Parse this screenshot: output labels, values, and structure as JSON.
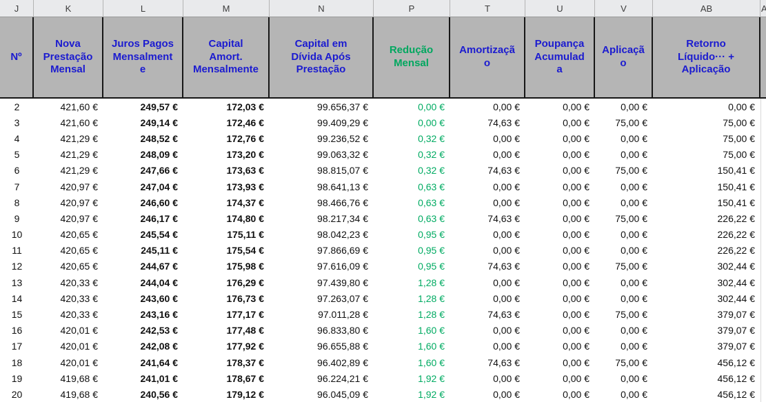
{
  "colors": {
    "header_bg": "#b5b5b5",
    "letters_bg": "#e9eaec",
    "header_blue": "#1b1bd0",
    "green": "#00a75f",
    "value_green": "#00ab62"
  },
  "column_letters": [
    "J",
    "K",
    "L",
    "M",
    "N",
    "P",
    "T",
    "U",
    "V",
    "AB",
    "A"
  ],
  "headers": {
    "n": "Nº",
    "k": "Nova\nPrestação\nMensal",
    "l": "Juros Pagos\nMensalment\ne",
    "m": "Capital\nAmort.\nMensalmente",
    "nd": "Capital em\nDívida Após\nPrestação",
    "p": "Redução\nMensal",
    "t": "Amortizaçã\no",
    "u": "Poupança\nAcumulad\na",
    "v": "Aplicaçã\no",
    "ab": "Retorno\nLíquido··· +\nAplicação"
  },
  "rows": [
    {
      "n": "2",
      "k": "421,60 €",
      "l": "249,57 €",
      "m": "172,03 €",
      "nd": "99.656,37 €",
      "p": "0,00 €",
      "t": "0,00 €",
      "u": "0,00 €",
      "v": "0,00 €",
      "ab": "0,00 €"
    },
    {
      "n": "3",
      "k": "421,60 €",
      "l": "249,14 €",
      "m": "172,46 €",
      "nd": "99.409,29 €",
      "p": "0,00 €",
      "t": "74,63 €",
      "u": "0,00 €",
      "v": "75,00 €",
      "ab": "75,00 €"
    },
    {
      "n": "4",
      "k": "421,29 €",
      "l": "248,52 €",
      "m": "172,76 €",
      "nd": "99.236,52 €",
      "p": "0,32 €",
      "t": "0,00 €",
      "u": "0,00 €",
      "v": "0,00 €",
      "ab": "75,00 €"
    },
    {
      "n": "5",
      "k": "421,29 €",
      "l": "248,09 €",
      "m": "173,20 €",
      "nd": "99.063,32 €",
      "p": "0,32 €",
      "t": "0,00 €",
      "u": "0,00 €",
      "v": "0,00 €",
      "ab": "75,00 €"
    },
    {
      "n": "6",
      "k": "421,29 €",
      "l": "247,66 €",
      "m": "173,63 €",
      "nd": "98.815,07 €",
      "p": "0,32 €",
      "t": "74,63 €",
      "u": "0,00 €",
      "v": "75,00 €",
      "ab": "150,41 €"
    },
    {
      "n": "7",
      "k": "420,97 €",
      "l": "247,04 €",
      "m": "173,93 €",
      "nd": "98.641,13 €",
      "p": "0,63 €",
      "t": "0,00 €",
      "u": "0,00 €",
      "v": "0,00 €",
      "ab": "150,41 €"
    },
    {
      "n": "8",
      "k": "420,97 €",
      "l": "246,60 €",
      "m": "174,37 €",
      "nd": "98.466,76 €",
      "p": "0,63 €",
      "t": "0,00 €",
      "u": "0,00 €",
      "v": "0,00 €",
      "ab": "150,41 €"
    },
    {
      "n": "9",
      "k": "420,97 €",
      "l": "246,17 €",
      "m": "174,80 €",
      "nd": "98.217,34 €",
      "p": "0,63 €",
      "t": "74,63 €",
      "u": "0,00 €",
      "v": "75,00 €",
      "ab": "226,22 €"
    },
    {
      "n": "10",
      "k": "420,65 €",
      "l": "245,54 €",
      "m": "175,11 €",
      "nd": "98.042,23 €",
      "p": "0,95 €",
      "t": "0,00 €",
      "u": "0,00 €",
      "v": "0,00 €",
      "ab": "226,22 €"
    },
    {
      "n": "11",
      "k": "420,65 €",
      "l": "245,11 €",
      "m": "175,54 €",
      "nd": "97.866,69 €",
      "p": "0,95 €",
      "t": "0,00 €",
      "u": "0,00 €",
      "v": "0,00 €",
      "ab": "226,22 €"
    },
    {
      "n": "12",
      "k": "420,65 €",
      "l": "244,67 €",
      "m": "175,98 €",
      "nd": "97.616,09 €",
      "p": "0,95 €",
      "t": "74,63 €",
      "u": "0,00 €",
      "v": "75,00 €",
      "ab": "302,44 €"
    },
    {
      "n": "13",
      "k": "420,33 €",
      "l": "244,04 €",
      "m": "176,29 €",
      "nd": "97.439,80 €",
      "p": "1,28 €",
      "t": "0,00 €",
      "u": "0,00 €",
      "v": "0,00 €",
      "ab": "302,44 €"
    },
    {
      "n": "14",
      "k": "420,33 €",
      "l": "243,60 €",
      "m": "176,73 €",
      "nd": "97.263,07 €",
      "p": "1,28 €",
      "t": "0,00 €",
      "u": "0,00 €",
      "v": "0,00 €",
      "ab": "302,44 €"
    },
    {
      "n": "15",
      "k": "420,33 €",
      "l": "243,16 €",
      "m": "177,17 €",
      "nd": "97.011,28 €",
      "p": "1,28 €",
      "t": "74,63 €",
      "u": "0,00 €",
      "v": "75,00 €",
      "ab": "379,07 €"
    },
    {
      "n": "16",
      "k": "420,01 €",
      "l": "242,53 €",
      "m": "177,48 €",
      "nd": "96.833,80 €",
      "p": "1,60 €",
      "t": "0,00 €",
      "u": "0,00 €",
      "v": "0,00 €",
      "ab": "379,07 €"
    },
    {
      "n": "17",
      "k": "420,01 €",
      "l": "242,08 €",
      "m": "177,92 €",
      "nd": "96.655,88 €",
      "p": "1,60 €",
      "t": "0,00 €",
      "u": "0,00 €",
      "v": "0,00 €",
      "ab": "379,07 €"
    },
    {
      "n": "18",
      "k": "420,01 €",
      "l": "241,64 €",
      "m": "178,37 €",
      "nd": "96.402,89 €",
      "p": "1,60 €",
      "t": "74,63 €",
      "u": "0,00 €",
      "v": "75,00 €",
      "ab": "456,12 €"
    },
    {
      "n": "19",
      "k": "419,68 €",
      "l": "241,01 €",
      "m": "178,67 €",
      "nd": "96.224,21 €",
      "p": "1,92 €",
      "t": "0,00 €",
      "u": "0,00 €",
      "v": "0,00 €",
      "ab": "456,12 €"
    },
    {
      "n": "20",
      "k": "419,68 €",
      "l": "240,56 €",
      "m": "179,12 €",
      "nd": "96.045,09 €",
      "p": "1,92 €",
      "t": "0,00 €",
      "u": "0,00 €",
      "v": "0,00 €",
      "ab": "456,12 €"
    }
  ]
}
